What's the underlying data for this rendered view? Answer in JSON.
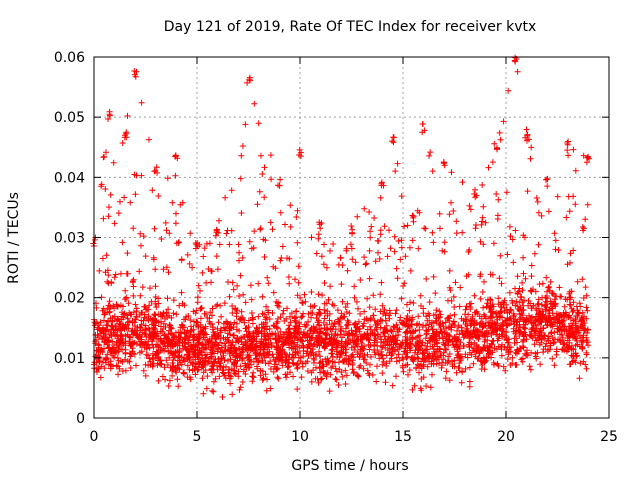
{
  "chart_data": {
    "type": "scatter",
    "title": "Day 121 of 2019, Rate Of TEC Index for receiver kvtx",
    "xlabel": "GPS time / hours",
    "ylabel": "ROTI / TECUs",
    "xlim": [
      0,
      25
    ],
    "ylim": [
      0,
      0.06
    ],
    "xticks": [
      0,
      5,
      10,
      15,
      20,
      25
    ],
    "xtick_labels": [
      "0",
      "5",
      "10",
      "15",
      "20",
      "25"
    ],
    "yticks": [
      0,
      0.01,
      0.02,
      0.03,
      0.04,
      0.05,
      0.06
    ],
    "ytick_labels": [
      "0",
      "0.01",
      "0.02",
      "0.03",
      "0.04",
      "0.05",
      "0.06"
    ],
    "grid": true,
    "marker": "+",
    "color": "#ff0000",
    "series": [
      {
        "name": "ROTI",
        "x_range": [
          0,
          24
        ],
        "baseline_profile": [
          {
            "x": 0,
            "y": 0.012
          },
          {
            "x": 2,
            "y": 0.014
          },
          {
            "x": 4,
            "y": 0.012
          },
          {
            "x": 6,
            "y": 0.011
          },
          {
            "x": 8,
            "y": 0.012
          },
          {
            "x": 10,
            "y": 0.013
          },
          {
            "x": 12,
            "y": 0.012
          },
          {
            "x": 14,
            "y": 0.013
          },
          {
            "x": 16,
            "y": 0.012
          },
          {
            "x": 18,
            "y": 0.013
          },
          {
            "x": 20,
            "y": 0.015
          },
          {
            "x": 22,
            "y": 0.016
          },
          {
            "x": 24,
            "y": 0.014
          }
        ],
        "upper_envelope": [
          {
            "x": 0,
            "y": 0.03
          },
          {
            "x": 0.7,
            "y": 0.051
          },
          {
            "x": 1.5,
            "y": 0.048
          },
          {
            "x": 2.0,
            "y": 0.058
          },
          {
            "x": 3.0,
            "y": 0.042
          },
          {
            "x": 4.0,
            "y": 0.044
          },
          {
            "x": 5.0,
            "y": 0.03
          },
          {
            "x": 6.0,
            "y": 0.032
          },
          {
            "x": 7.5,
            "y": 0.057
          },
          {
            "x": 9.0,
            "y": 0.04
          },
          {
            "x": 10.0,
            "y": 0.045
          },
          {
            "x": 11.0,
            "y": 0.033
          },
          {
            "x": 12.5,
            "y": 0.032
          },
          {
            "x": 14.0,
            "y": 0.04
          },
          {
            "x": 14.5,
            "y": 0.047
          },
          {
            "x": 15.5,
            "y": 0.034
          },
          {
            "x": 16.0,
            "y": 0.049
          },
          {
            "x": 17.0,
            "y": 0.043
          },
          {
            "x": 18.5,
            "y": 0.038
          },
          {
            "x": 19.5,
            "y": 0.046
          },
          {
            "x": 20.5,
            "y": 0.06
          },
          {
            "x": 21.0,
            "y": 0.048
          },
          {
            "x": 22.0,
            "y": 0.04
          },
          {
            "x": 23.0,
            "y": 0.046
          },
          {
            "x": 24.0,
            "y": 0.044
          }
        ],
        "lower_envelope": [
          {
            "x": 0,
            "y": 0.007
          },
          {
            "x": 1.5,
            "y": 0.003
          },
          {
            "x": 5,
            "y": 0.004
          },
          {
            "x": 7,
            "y": 0.003
          },
          {
            "x": 10,
            "y": 0.004
          },
          {
            "x": 13,
            "y": 0.003
          },
          {
            "x": 15,
            "y": 0.004
          },
          {
            "x": 20,
            "y": 0.004
          },
          {
            "x": 24,
            "y": 0.005
          }
        ]
      }
    ]
  }
}
